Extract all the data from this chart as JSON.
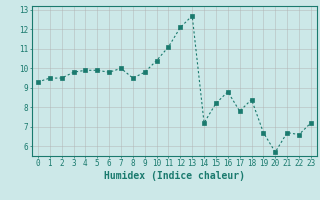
{
  "xlabel": "Humidex (Indice chaleur)",
  "x": [
    0,
    1,
    2,
    3,
    4,
    5,
    6,
    7,
    8,
    9,
    10,
    11,
    12,
    13,
    14,
    15,
    16,
    17,
    18,
    19,
    20,
    21,
    22,
    23
  ],
  "y": [
    9.3,
    9.5,
    9.5,
    9.8,
    9.9,
    9.9,
    9.8,
    10.0,
    9.5,
    9.8,
    10.4,
    11.1,
    12.1,
    12.7,
    7.2,
    8.2,
    8.8,
    7.8,
    8.4,
    6.7,
    5.7,
    6.7,
    6.6,
    7.2
  ],
  "ylim": [
    5.5,
    13.2
  ],
  "xlim": [
    -0.5,
    23.5
  ],
  "yticks": [
    6,
    7,
    8,
    9,
    10,
    11,
    12,
    13
  ],
  "xticks": [
    0,
    1,
    2,
    3,
    4,
    5,
    6,
    7,
    8,
    9,
    10,
    11,
    12,
    13,
    14,
    15,
    16,
    17,
    18,
    19,
    20,
    21,
    22,
    23
  ],
  "line_color": "#1a7a6e",
  "marker_color": "#1a7a6e",
  "bg_color": "#cce8e8",
  "grid_color": "#b0b0b0",
  "text_color": "#000000",
  "xlabel_color": "#1a7a6e",
  "tick_label_color": "#1a7a6e",
  "axis_color": "#1a7a6e",
  "font_size_ticks": 5.5,
  "font_size_xlabel": 7.0
}
